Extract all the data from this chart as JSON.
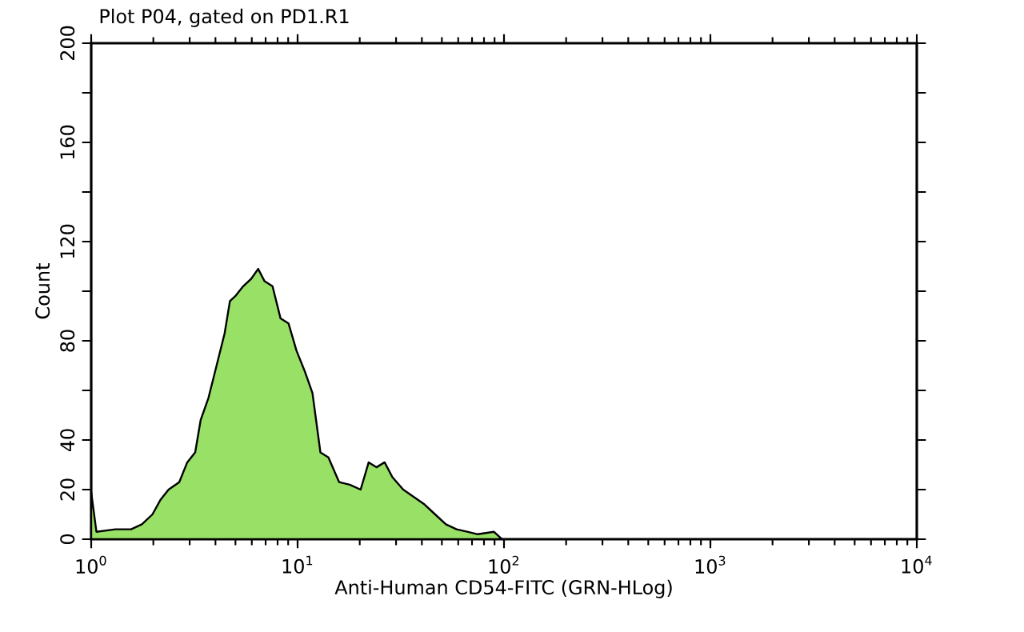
{
  "chart_data": {
    "type": "area",
    "title": "Plot P04, gated on PD1.R1",
    "xlabel": "Anti-Human CD54-FITC (GRN-HLog)",
    "ylabel": "Count",
    "log": "x",
    "color": "#99e066",
    "x": [
      1.0,
      1.06,
      1.31,
      1.56,
      1.76,
      1.98,
      2.17,
      2.37,
      2.67,
      2.92,
      3.19,
      3.39,
      3.7,
      4.05,
      4.43,
      4.7,
      4.99,
      5.45,
      5.96,
      6.44,
      6.92,
      7.56,
      8.27,
      9.04,
      9.88,
      10.8,
      11.8,
      12.9,
      14.1,
      15.9,
      17.9,
      20.2,
      22.1,
      24.1,
      26.4,
      28.8,
      32.5,
      36.6,
      41.2,
      46.4,
      52.3,
      58.9,
      66.3,
      74.7,
      89.3,
      97.7
    ],
    "values": [
      19,
      3,
      4,
      4,
      6,
      10,
      16,
      20,
      23,
      31,
      35,
      48,
      57,
      70,
      83,
      96,
      98,
      102,
      105,
      109,
      104,
      102,
      89,
      87,
      76,
      68,
      59,
      35,
      33,
      23,
      22,
      20,
      31,
      29,
      31,
      25,
      20,
      17,
      14,
      10,
      6,
      4,
      3,
      2,
      3,
      0
    ],
    "xlim": [
      1,
      10000
    ],
    "xticks": [
      {
        "value": 1,
        "label": "10$^{0}$"
      },
      {
        "value": 10,
        "label": "10$^{1}$"
      },
      {
        "value": 100,
        "label": "10$^{2}$"
      },
      {
        "value": 1000,
        "label": "10$^{3}$"
      },
      {
        "value": 10000,
        "label": "10$^{4}$"
      }
    ],
    "ylim": [
      0,
      200
    ],
    "yticks": [
      0,
      20,
      40,
      {
        "value": 60,
        "label": null
      },
      80,
      {
        "value": 100,
        "label": null
      },
      120,
      {
        "value": 140,
        "label": null
      },
      160,
      {
        "value": 180,
        "label": null
      },
      200
    ]
  }
}
